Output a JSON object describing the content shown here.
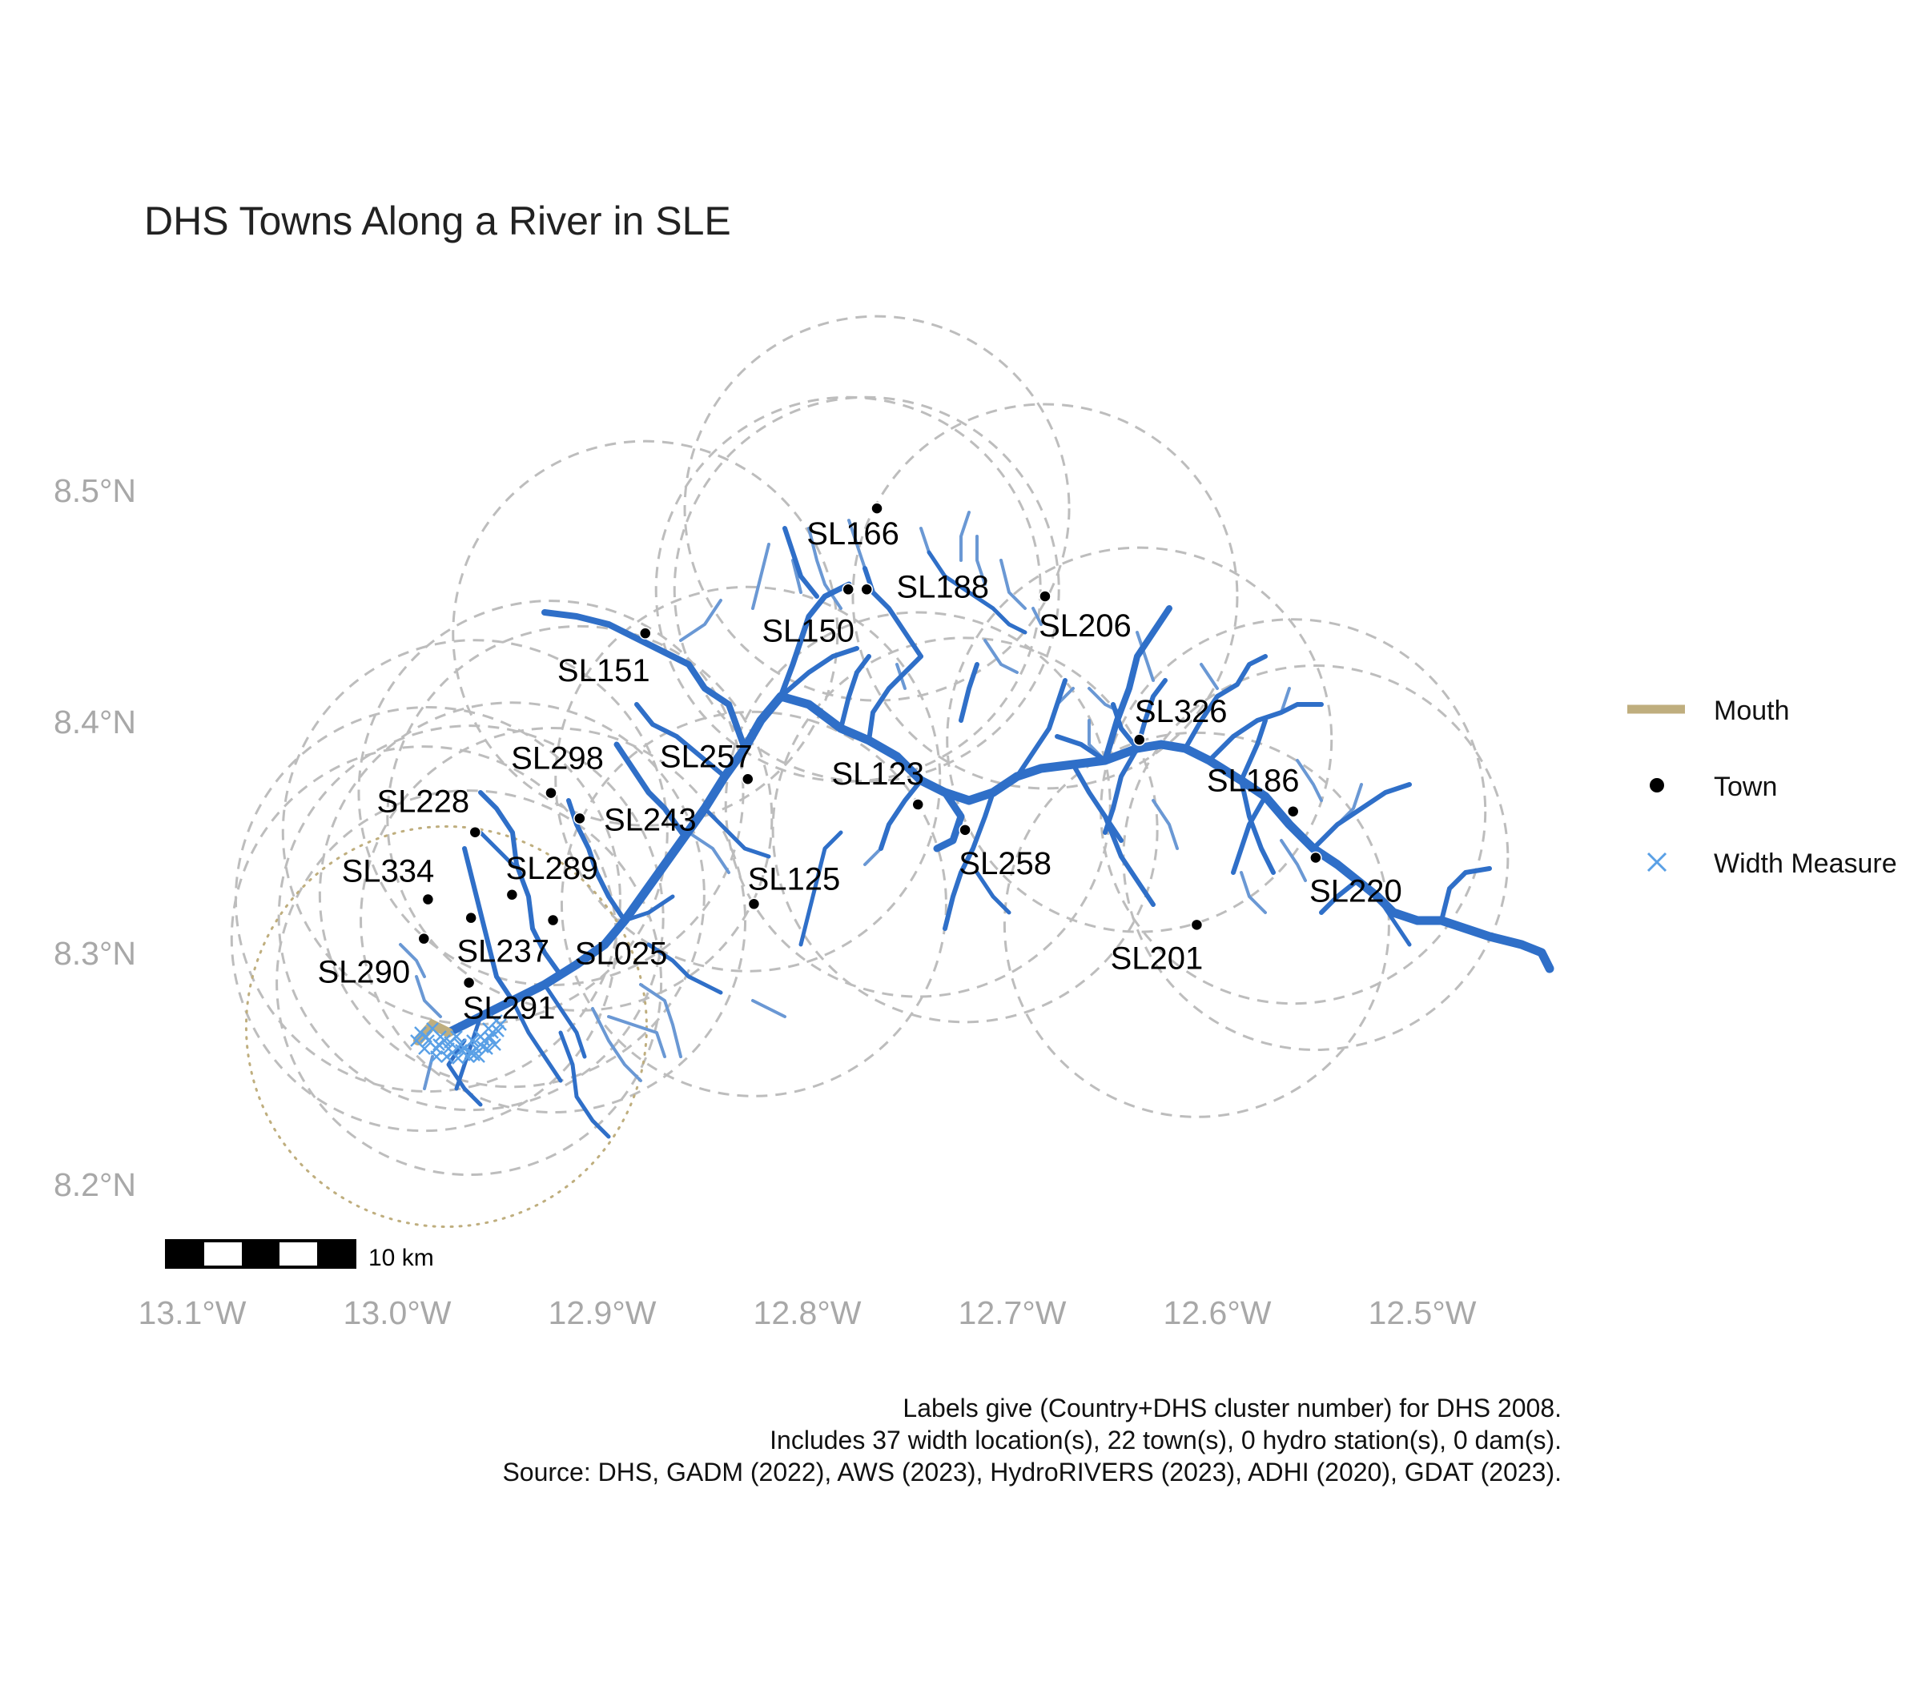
{
  "title": "DHS Towns Along a River in SLE",
  "axes": {
    "y_ticks": [
      {
        "label": "8.5°N",
        "value": 8.5
      },
      {
        "label": "8.4°N",
        "value": 8.4
      },
      {
        "label": "8.3°N",
        "value": 8.3
      },
      {
        "label": "8.2°N",
        "value": 8.2
      }
    ],
    "x_ticks": [
      {
        "label": "13.1°W",
        "value": -13.1
      },
      {
        "label": "13.0°W",
        "value": -13.0
      },
      {
        "label": "12.9°W",
        "value": -12.9
      },
      {
        "label": "12.8°W",
        "value": -12.8
      },
      {
        "label": "12.7°W",
        "value": -12.7
      },
      {
        "label": "12.6°W",
        "value": -12.6
      },
      {
        "label": "12.5°W",
        "value": -12.5
      }
    ]
  },
  "legend": [
    {
      "label": "Mouth",
      "symbol": "line",
      "color": "#bfae7e"
    },
    {
      "label": "Town",
      "symbol": "dot",
      "color": "#000000"
    },
    {
      "label": "Width Measure",
      "symbol": "cross",
      "color": "#5aa0e6"
    }
  ],
  "scale_bar": {
    "label": "10 km"
  },
  "caption": [
    "Labels give (Country+DHS cluster number) for DHS 2008.",
    "Includes 37 width location(s), 22 town(s), 0 hydro station(s), 0 dam(s).",
    "Source: DHS, GADM (2022), AWS (2023), HydroRIVERS (2023), ADHI (2020), GDAT (2023)."
  ],
  "colors": {
    "river_main": "#2f6fc8",
    "river_minor": "#6a98d4",
    "buffer": "#bdbdbd",
    "mouth": "#bfae7e",
    "width_measure": "#5aa0e6"
  },
  "towns": [
    {
      "name": "SL166",
      "lon": -12.766,
      "lat": 8.492
    },
    {
      "name": "SL188",
      "lon": -12.771,
      "lat": 8.457
    },
    {
      "name": "SL150",
      "lon": -12.78,
      "lat": 8.457
    },
    {
      "name": "SL206",
      "lon": -12.684,
      "lat": 8.454
    },
    {
      "name": "SL151",
      "lon": -12.879,
      "lat": 8.438
    },
    {
      "name": "SL326",
      "lon": -12.638,
      "lat": 8.392
    },
    {
      "name": "SL257",
      "lon": -12.829,
      "lat": 8.375
    },
    {
      "name": "SL186",
      "lon": -12.563,
      "lat": 8.361
    },
    {
      "name": "SL298",
      "lon": -12.925,
      "lat": 8.369
    },
    {
      "name": "SL123",
      "lon": -12.746,
      "lat": 8.364
    },
    {
      "name": "SL243",
      "lon": -12.911,
      "lat": 8.358
    },
    {
      "name": "SL228",
      "lon": -12.962,
      "lat": 8.352
    },
    {
      "name": "SL258",
      "lon": -12.723,
      "lat": 8.353
    },
    {
      "name": "SL220",
      "lon": -12.552,
      "lat": 8.341
    },
    {
      "name": "SL334",
      "lon": -12.985,
      "lat": 8.323
    },
    {
      "name": "SL289",
      "lon": -12.944,
      "lat": 8.325
    },
    {
      "name": "SL125",
      "lon": -12.826,
      "lat": 8.321
    },
    {
      "name": "SL237",
      "lon": -12.964,
      "lat": 8.315
    },
    {
      "name": "SL025",
      "lon": -12.924,
      "lat": 8.314
    },
    {
      "name": "SL201",
      "lon": -12.61,
      "lat": 8.312
    },
    {
      "name": "SL290",
      "lon": -12.987,
      "lat": 8.306
    },
    {
      "name": "SL291",
      "lon": -12.965,
      "lat": 8.287
    }
  ],
  "mouth_point": {
    "lon": -12.976,
    "lat": 8.268
  }
}
